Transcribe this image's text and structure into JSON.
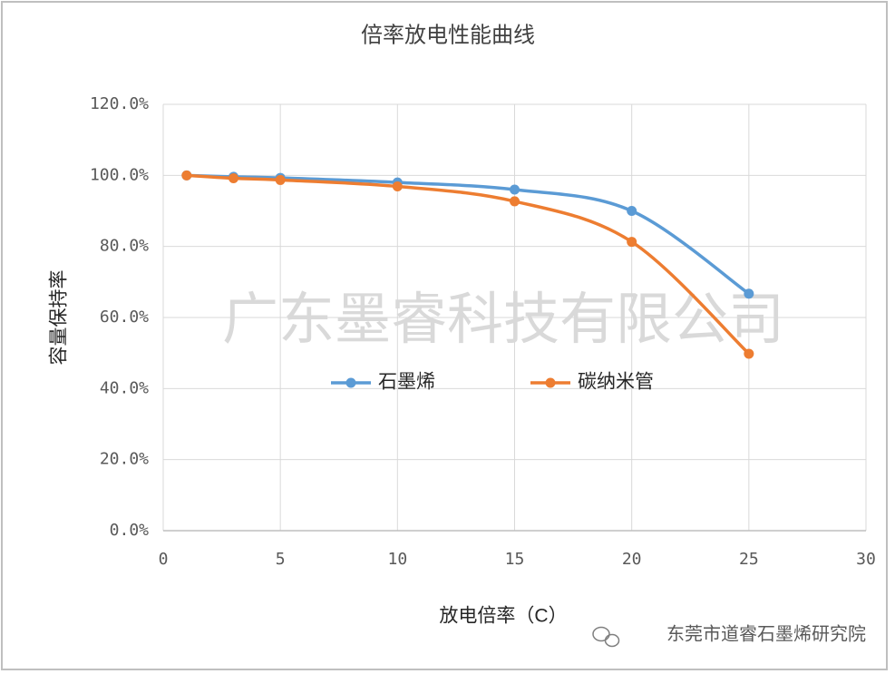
{
  "chart_data": {
    "type": "line",
    "title": "倍率放电性能曲线",
    "x_label": "放电倍率（C）",
    "y_label": "容量保持率",
    "x": [
      1,
      3,
      5,
      10,
      15,
      20,
      25
    ],
    "series": [
      {
        "name": "石墨烯",
        "color": "#5b9bd5",
        "values": [
          100,
          99.6,
          99.3,
          98,
          96,
          90,
          66.7
        ]
      },
      {
        "name": "碳纳米管",
        "color": "#ed7d31",
        "values": [
          100,
          99.2,
          98.7,
          96.9,
          92.7,
          81.3,
          49.8
        ]
      }
    ],
    "xlim": [
      0,
      30
    ],
    "xticks": [
      0,
      5,
      10,
      15,
      20,
      25,
      30
    ],
    "ylim": [
      0,
      120
    ],
    "yticks": [
      {
        "value": 0,
        "label": "0.0%"
      },
      {
        "value": 20,
        "label": "20.0%"
      },
      {
        "value": 40,
        "label": "40.0%"
      },
      {
        "value": 60,
        "label": "60.0%"
      },
      {
        "value": 80,
        "label": "80.0%"
      },
      {
        "value": 100,
        "label": "100.0%"
      },
      {
        "value": 120,
        "label": "120.0%"
      }
    ],
    "grid": true,
    "smooth": true,
    "legend": "center",
    "watermark": "广东墨睿科技有限公司",
    "source": "东莞市道睿石墨烯研究院"
  }
}
